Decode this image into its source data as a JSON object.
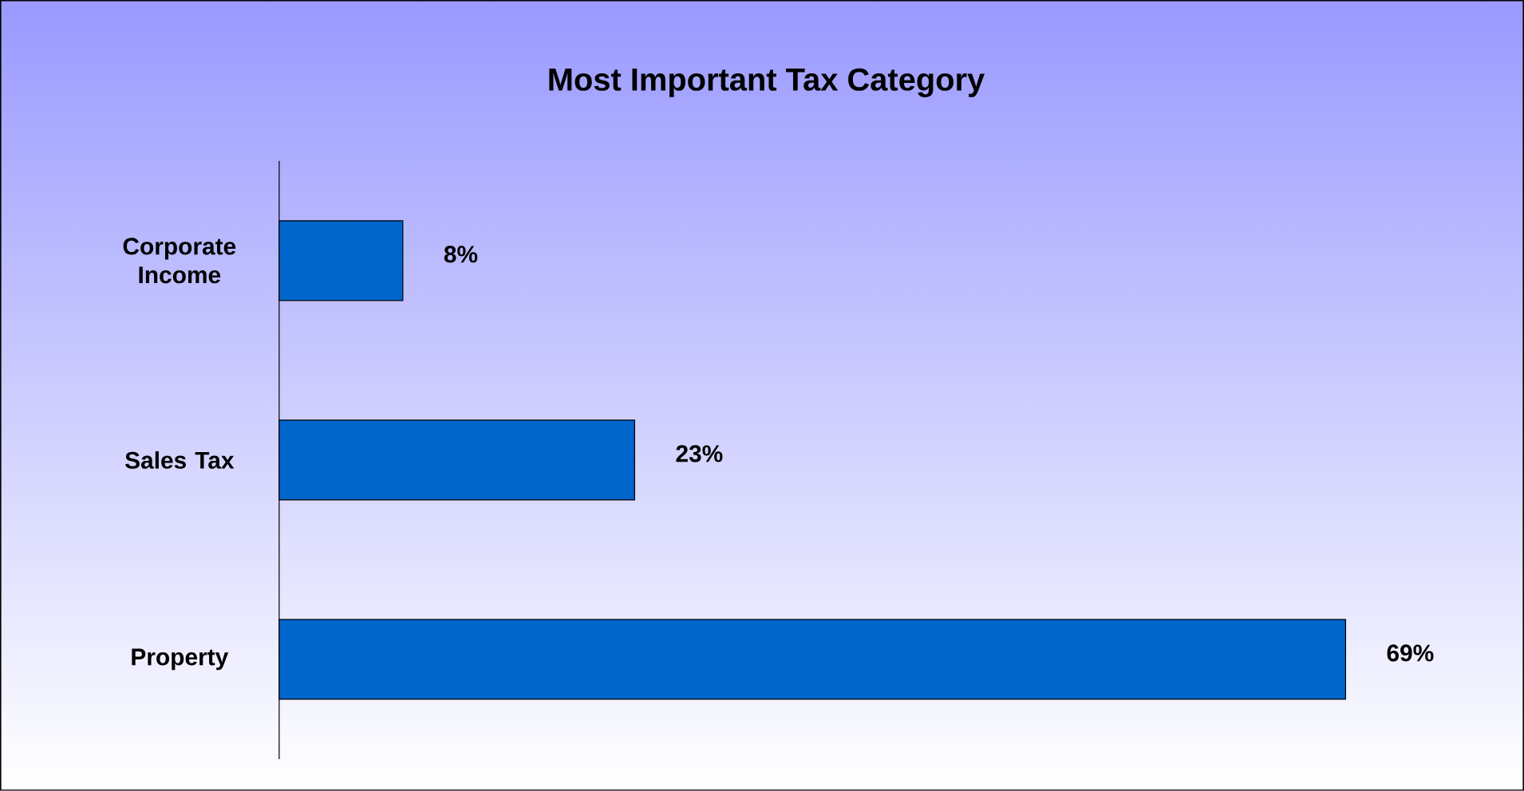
{
  "chart_data": {
    "type": "bar",
    "orientation": "horizontal",
    "title": "Most Important Tax Category",
    "categories": [
      "Corporate Income",
      "Sales Tax",
      "Property"
    ],
    "values": [
      8,
      23,
      69
    ],
    "value_labels": [
      "8%",
      "23%",
      "69%"
    ],
    "color": "#0066cc"
  }
}
